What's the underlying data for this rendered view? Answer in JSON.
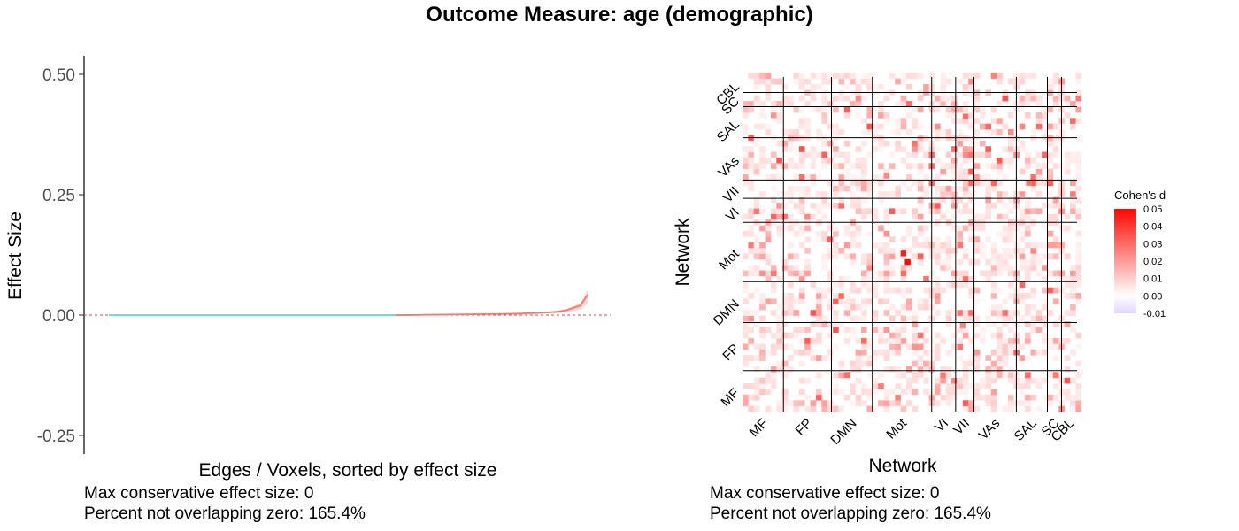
{
  "title": "Outcome Measure: age (demographic)",
  "colors": {
    "positive_line": "#f8766d",
    "negative_line": "#4fc8c0",
    "ci_band": "#f8766d",
    "zero_line": "#e8413a",
    "heat_high": "#ff0000",
    "heat_mid": "#ffffff",
    "heat_low": "#e3d4ff",
    "grid_line": "#000000"
  },
  "chart_data": [
    {
      "type": "line",
      "xlabel": "Edges / Voxels, sorted by effect size",
      "ylabel": "Effect Size",
      "ylim": [
        -0.28,
        0.53
      ],
      "y_ticks": [
        -0.25,
        0.0,
        0.25,
        0.5
      ],
      "y_tick_labels": [
        "-0.25",
        "0.00",
        "0.25",
        "0.50"
      ],
      "reference_line": 0,
      "grid": false,
      "series": [
        {
          "sorted_effect_sizes": [
            0,
            0,
            0,
            0,
            0,
            0,
            0,
            0.0005,
            0.001,
            0.0015,
            0.002,
            0.003,
            0.004,
            0.005,
            0.007,
            0.01,
            0.015,
            0.02,
            0.042
          ]
        }
      ],
      "x_fractions": [
        0,
        0.1,
        0.2,
        0.3,
        0.4,
        0.5,
        0.6,
        0.65,
        0.7,
        0.75,
        0.8,
        0.85,
        0.88,
        0.91,
        0.935,
        0.955,
        0.97,
        0.985,
        1.0
      ],
      "caption_lines": [
        "Max conservative effect size: 0",
        "Percent not overlapping zero: 165.4%"
      ]
    },
    {
      "type": "heatmap",
      "xlabel": "Network",
      "ylabel": "Network",
      "networks": [
        "MF",
        "FP",
        "DMN",
        "Mot",
        "VI",
        "VII",
        "VAs",
        "SAL",
        "SC",
        "CBL"
      ],
      "network_sizes": [
        29,
        34,
        29,
        42,
        17,
        13,
        30,
        22,
        10,
        11
      ],
      "legend_title": "Cohen's d",
      "legend_range": [
        -0.01,
        0.05
      ],
      "legend_ticks": [
        "0.05",
        "0.04",
        "0.03",
        "0.02",
        "0.01",
        "0.00",
        "-0.01"
      ],
      "highlights": [
        {
          "row": "Mot",
          "col": "Mot",
          "value": 0.05
        },
        {
          "row": "Mot",
          "col": "Mot",
          "value": 0.045
        },
        {
          "row": "SAL",
          "col": "VII",
          "value": 0.03
        },
        {
          "row": "VII",
          "col": "SAL",
          "value": 0.028
        },
        {
          "row": "FP",
          "col": "VII",
          "value": 0.025
        },
        {
          "row": "VAs",
          "col": "Mot",
          "value": 0.024
        }
      ],
      "caption_lines": [
        "Max conservative effect size: 0",
        "Percent not overlapping zero: 165.4%"
      ]
    }
  ]
}
